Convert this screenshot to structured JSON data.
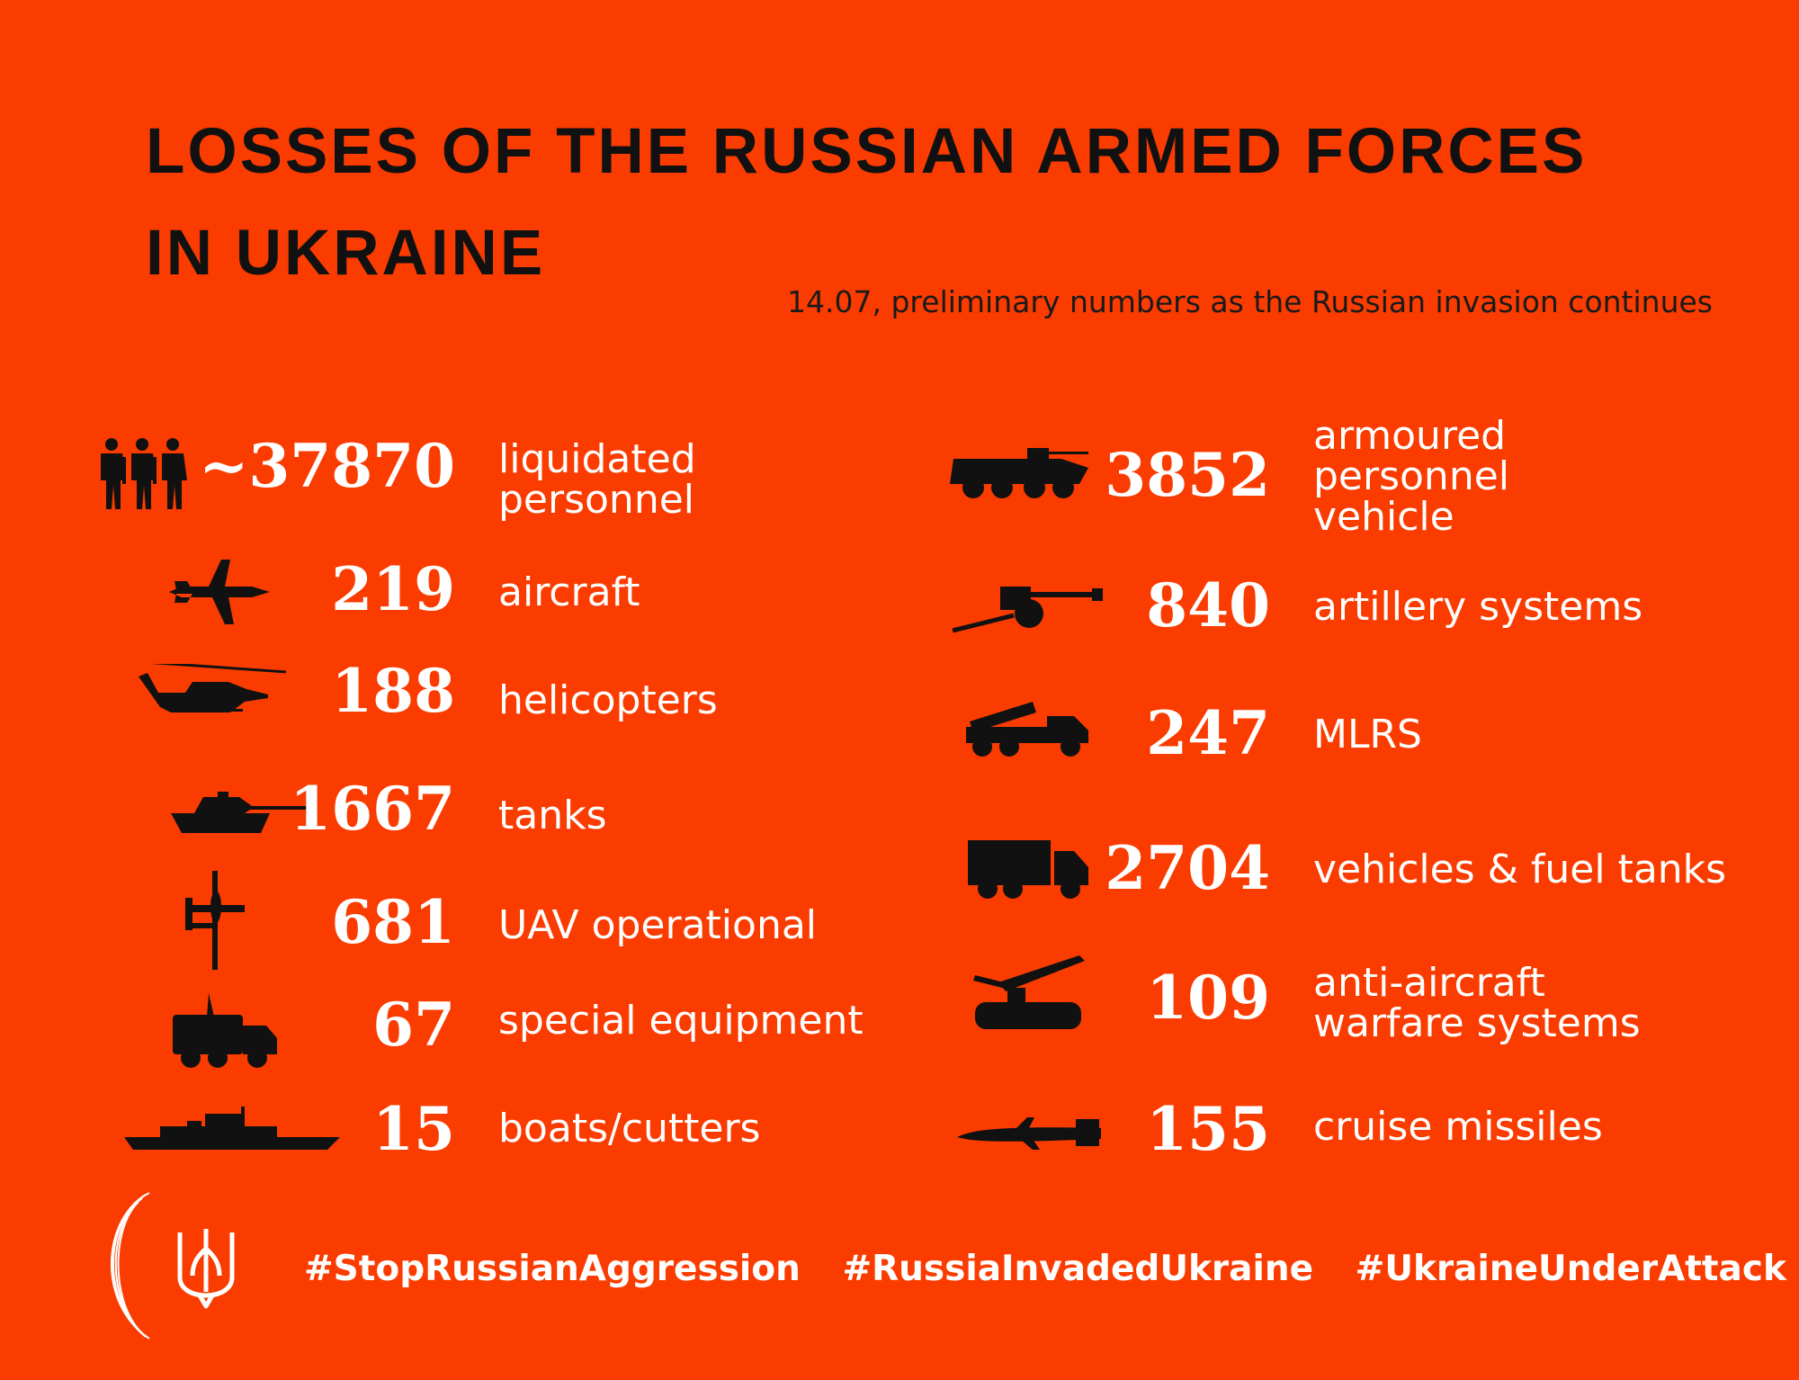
{
  "title": [
    "LOSSES OF THE RUSSIAN ARMED FORCES",
    "IN UKRAINE"
  ],
  "subtitle": "14.07, preliminary numbers as the Russian invasion continues",
  "left": [
    {
      "value": "~37870",
      "label": [
        "liquidated",
        "personnel"
      ],
      "icon": "soldiers-icon"
    },
    {
      "value": "219",
      "label": [
        "aircraft"
      ],
      "icon": "jet-fighter-icon"
    },
    {
      "value": "188",
      "label": [
        "helicopters"
      ],
      "icon": "helicopter-icon"
    },
    {
      "value": "1667",
      "label": [
        "tanks"
      ],
      "icon": "tank-icon"
    },
    {
      "value": "681",
      "label": [
        "UAV operational"
      ],
      "icon": "drone-icon"
    },
    {
      "value": "67",
      "label": [
        "special equipment"
      ],
      "icon": "special-vehicle-icon"
    },
    {
      "value": "15",
      "label": [
        "boats/cutters"
      ],
      "icon": "warship-icon"
    }
  ],
  "right": [
    {
      "value": "3852",
      "label": [
        "armoured",
        "personnel",
        "vehicle"
      ],
      "icon": "apc-icon"
    },
    {
      "value": "840",
      "label": [
        "artillery systems"
      ],
      "icon": "artillery-icon"
    },
    {
      "value": "247",
      "label": [
        "MLRS"
      ],
      "icon": "mlrs-truck-icon"
    },
    {
      "value": "2704",
      "label": [
        "vehicles & fuel tanks"
      ],
      "icon": "truck-icon"
    },
    {
      "value": "109",
      "label": [
        "anti-aircraft",
        "warfare systems"
      ],
      "icon": "anti-aircraft-icon"
    },
    {
      "value": "155",
      "label": [
        "cruise missiles"
      ],
      "icon": "cruise-missile-icon"
    }
  ],
  "hashtags": [
    "#StopRussianAggression",
    "#RussiaInvadedUkraine",
    "#UkraineUnderAttack"
  ],
  "icons": {
    "logo": "ministry-arc-logo-icon",
    "trident": "trident-emblem-icon"
  },
  "colors": {
    "background": "#fa3c00",
    "text": "#ffffff",
    "title": "#111111"
  }
}
